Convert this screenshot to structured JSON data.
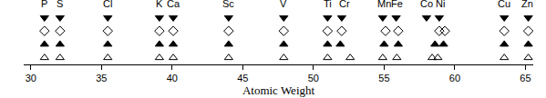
{
  "chart_data": {
    "type": "scatter",
    "x_label": "Atomic Weight",
    "xlim": [
      29.5,
      65.55
    ],
    "xticks": [
      30,
      35,
      40,
      45,
      50,
      55,
      60,
      65
    ],
    "ylim": [
      0.5,
      4.5
    ],
    "tick_labels": "x",
    "grid": false,
    "annotations": [
      {
        "text": "P",
        "x": 30.97
      },
      {
        "text": "S",
        "x": 32.07
      },
      {
        "text": "Cl",
        "x": 35.45
      },
      {
        "text": "K",
        "x": 39.1
      },
      {
        "text": "Ca",
        "x": 40.08
      },
      {
        "text": "Sc",
        "x": 44.0
      },
      {
        "text": "V",
        "x": 47.9
      },
      {
        "text": "Ti",
        "x": 51.0
      },
      {
        "text": "Cr",
        "x": 52.2
      },
      {
        "text": "Mn",
        "x": 55.0
      },
      {
        "text": "Fe",
        "x": 55.9
      },
      {
        "text": "Co",
        "x": 58.0
      },
      {
        "text": "Ni",
        "x": 59.0
      },
      {
        "text": "Cu",
        "x": 63.5
      },
      {
        "text": "Zn",
        "x": 65.1
      }
    ],
    "series": [
      {
        "marker": "triangle-down",
        "color": "#000000",
        "x": [
          30.97,
          32.07,
          35.45,
          39.1,
          40.08,
          44.0,
          47.9,
          51.0,
          52.0,
          54.9,
          55.85,
          58.0,
          58.9,
          63.5,
          65.2
        ],
        "values": [
          4,
          4,
          4,
          4,
          4,
          4,
          4,
          4,
          4,
          4,
          4,
          4,
          4,
          4,
          4
        ]
      },
      {
        "marker": "diamond-open",
        "color": "#000000",
        "x": [
          30.97,
          32.07,
          35.45,
          39.1,
          40.08,
          44.0,
          47.9,
          51.0,
          52.0,
          55.1,
          56.0,
          58.9,
          59.3,
          63.5,
          65.2
        ],
        "values": [
          3,
          3,
          3,
          3,
          3,
          3,
          3,
          3,
          3,
          3,
          3,
          3,
          3,
          3,
          3
        ]
      },
      {
        "marker": "triangle-up",
        "color": "#000000",
        "x": [
          30.97,
          32.07,
          35.45,
          39.1,
          40.08,
          44.0,
          47.9,
          51.0,
          51.9,
          55.0,
          56.0,
          58.6,
          59.2,
          63.5,
          65.2
        ],
        "values": [
          2,
          2,
          2,
          2,
          2,
          2,
          2,
          2,
          2,
          2,
          2,
          2,
          2,
          2,
          2
        ]
      },
      {
        "marker": "triangle-up-open",
        "color": "#000000",
        "x": [
          30.97,
          32.07,
          35.45,
          39.1,
          40.08,
          44.0,
          47.9,
          51.0,
          52.6,
          54.9,
          55.9,
          58.4,
          58.8,
          63.5,
          65.2
        ],
        "values": [
          1,
          1,
          1,
          1,
          1,
          1,
          1,
          1,
          1,
          1,
          1,
          1,
          1,
          1,
          1
        ]
      }
    ]
  }
}
